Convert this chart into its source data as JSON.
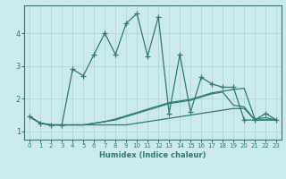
{
  "xlabel": "Humidex (Indice chaleur)",
  "bg_color": "#cce9ec",
  "grid_color": "#aad4d8",
  "line_color": "#2d7d74",
  "xlim": [
    -0.5,
    23.5
  ],
  "ylim": [
    0.75,
    4.85
  ],
  "xticks": [
    0,
    1,
    2,
    3,
    4,
    5,
    6,
    7,
    8,
    9,
    10,
    11,
    12,
    13,
    14,
    15,
    16,
    17,
    18,
    19,
    20,
    21,
    22,
    23
  ],
  "yticks": [
    1,
    2,
    3,
    4
  ],
  "series": [
    [
      1.45,
      1.25,
      1.2,
      1.2,
      2.9,
      2.7,
      3.35,
      4.0,
      3.35,
      4.3,
      4.6,
      3.3,
      4.5,
      1.55,
      3.35,
      1.6,
      2.65,
      2.45,
      2.35,
      2.35,
      1.35,
      1.35,
      1.55,
      1.35
    ],
    [
      1.45,
      1.25,
      1.2,
      1.2,
      1.2,
      1.2,
      1.25,
      1.3,
      1.38,
      1.48,
      1.58,
      1.68,
      1.78,
      1.88,
      1.93,
      1.98,
      2.08,
      2.18,
      2.23,
      2.28,
      2.32,
      1.38,
      1.42,
      1.35
    ],
    [
      1.45,
      1.25,
      1.2,
      1.2,
      1.2,
      1.2,
      1.25,
      1.3,
      1.35,
      1.45,
      1.55,
      1.65,
      1.75,
      1.85,
      1.9,
      1.95,
      2.05,
      2.15,
      2.2,
      1.8,
      1.75,
      1.35,
      1.35,
      1.35
    ],
    [
      1.45,
      1.25,
      1.2,
      1.2,
      1.2,
      1.2,
      1.2,
      1.2,
      1.2,
      1.2,
      1.25,
      1.3,
      1.35,
      1.4,
      1.45,
      1.5,
      1.55,
      1.6,
      1.65,
      1.7,
      1.7,
      1.35,
      1.35,
      1.35
    ]
  ],
  "marker_series": 0,
  "marker": "+",
  "marker_size": 4.5,
  "linewidth": 0.9
}
